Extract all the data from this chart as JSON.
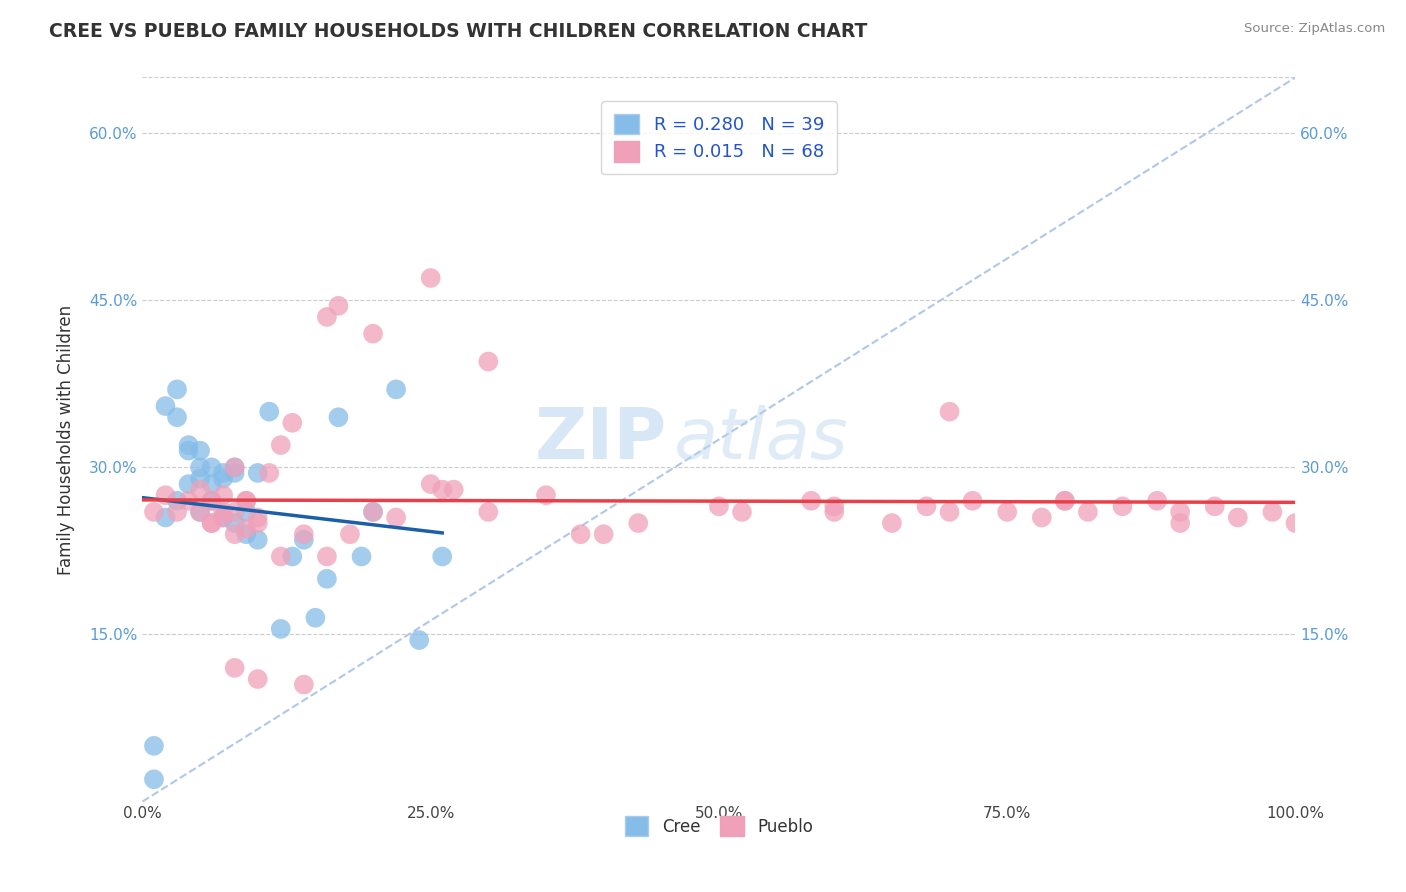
{
  "title": "CREE VS PUEBLO FAMILY HOUSEHOLDS WITH CHILDREN CORRELATION CHART",
  "source": "Source: ZipAtlas.com",
  "ylabel": "Family Households with Children",
  "watermark_zip": "ZIP",
  "watermark_atlas": "atlas",
  "background_color": "#ffffff",
  "plot_bg_color": "#ffffff",
  "grid_color": "#cccccc",
  "cree_color": "#85bce8",
  "pueblo_color": "#f0a0b8",
  "cree_line_color": "#1a5fa8",
  "pueblo_line_color": "#e8404a",
  "diag_line_color": "#b0c8e8",
  "cree_R": 0.28,
  "cree_N": 39,
  "pueblo_R": 0.015,
  "pueblo_N": 68,
  "xlim": [
    0,
    1.0
  ],
  "ylim": [
    0,
    0.65
  ],
  "xticks": [
    0.0,
    0.25,
    0.5,
    0.75,
    1.0
  ],
  "xtick_labels": [
    "0.0%",
    "25.0%",
    "50.0%",
    "75.0%",
    "100.0%"
  ],
  "ytick_labels": [
    "15.0%",
    "30.0%",
    "45.0%",
    "60.0%"
  ],
  "ytick_values": [
    0.15,
    0.3,
    0.45,
    0.6
  ],
  "cree_x": [
    0.01,
    0.02,
    0.03,
    0.03,
    0.04,
    0.04,
    0.05,
    0.05,
    0.05,
    0.06,
    0.06,
    0.06,
    0.07,
    0.07,
    0.07,
    0.08,
    0.08,
    0.08,
    0.09,
    0.09,
    0.1,
    0.1,
    0.11,
    0.12,
    0.13,
    0.14,
    0.15,
    0.16,
    0.17,
    0.19,
    0.2,
    0.22,
    0.24,
    0.26,
    0.01,
    0.02,
    0.03,
    0.04,
    0.05
  ],
  "cree_y": [
    0.05,
    0.355,
    0.345,
    0.37,
    0.315,
    0.32,
    0.26,
    0.29,
    0.3,
    0.27,
    0.285,
    0.3,
    0.255,
    0.29,
    0.295,
    0.3,
    0.295,
    0.25,
    0.26,
    0.24,
    0.295,
    0.235,
    0.35,
    0.155,
    0.22,
    0.235,
    0.165,
    0.2,
    0.345,
    0.22,
    0.26,
    0.37,
    0.145,
    0.22,
    0.02,
    0.255,
    0.27,
    0.285,
    0.315
  ],
  "pueblo_x": [
    0.01,
    0.02,
    0.03,
    0.04,
    0.05,
    0.05,
    0.06,
    0.06,
    0.07,
    0.07,
    0.08,
    0.08,
    0.08,
    0.09,
    0.09,
    0.1,
    0.1,
    0.11,
    0.12,
    0.13,
    0.14,
    0.16,
    0.17,
    0.2,
    0.22,
    0.25,
    0.26,
    0.27,
    0.3,
    0.35,
    0.38,
    0.4,
    0.43,
    0.5,
    0.52,
    0.58,
    0.6,
    0.65,
    0.68,
    0.7,
    0.72,
    0.75,
    0.78,
    0.8,
    0.82,
    0.85,
    0.88,
    0.9,
    0.93,
    0.95,
    0.98,
    1.0,
    0.06,
    0.07,
    0.08,
    0.09,
    0.1,
    0.12,
    0.14,
    0.16,
    0.18,
    0.2,
    0.25,
    0.3,
    0.6,
    0.7,
    0.8,
    0.9
  ],
  "pueblo_y": [
    0.26,
    0.275,
    0.26,
    0.27,
    0.26,
    0.28,
    0.27,
    0.25,
    0.255,
    0.275,
    0.26,
    0.3,
    0.12,
    0.245,
    0.27,
    0.255,
    0.11,
    0.295,
    0.32,
    0.34,
    0.105,
    0.435,
    0.445,
    0.42,
    0.255,
    0.285,
    0.28,
    0.28,
    0.26,
    0.275,
    0.24,
    0.24,
    0.25,
    0.265,
    0.26,
    0.27,
    0.26,
    0.25,
    0.265,
    0.26,
    0.27,
    0.26,
    0.255,
    0.27,
    0.26,
    0.265,
    0.27,
    0.26,
    0.265,
    0.255,
    0.26,
    0.25,
    0.25,
    0.26,
    0.24,
    0.27,
    0.25,
    0.22,
    0.24,
    0.22,
    0.24,
    0.26,
    0.47,
    0.395,
    0.265,
    0.35,
    0.27,
    0.25
  ]
}
